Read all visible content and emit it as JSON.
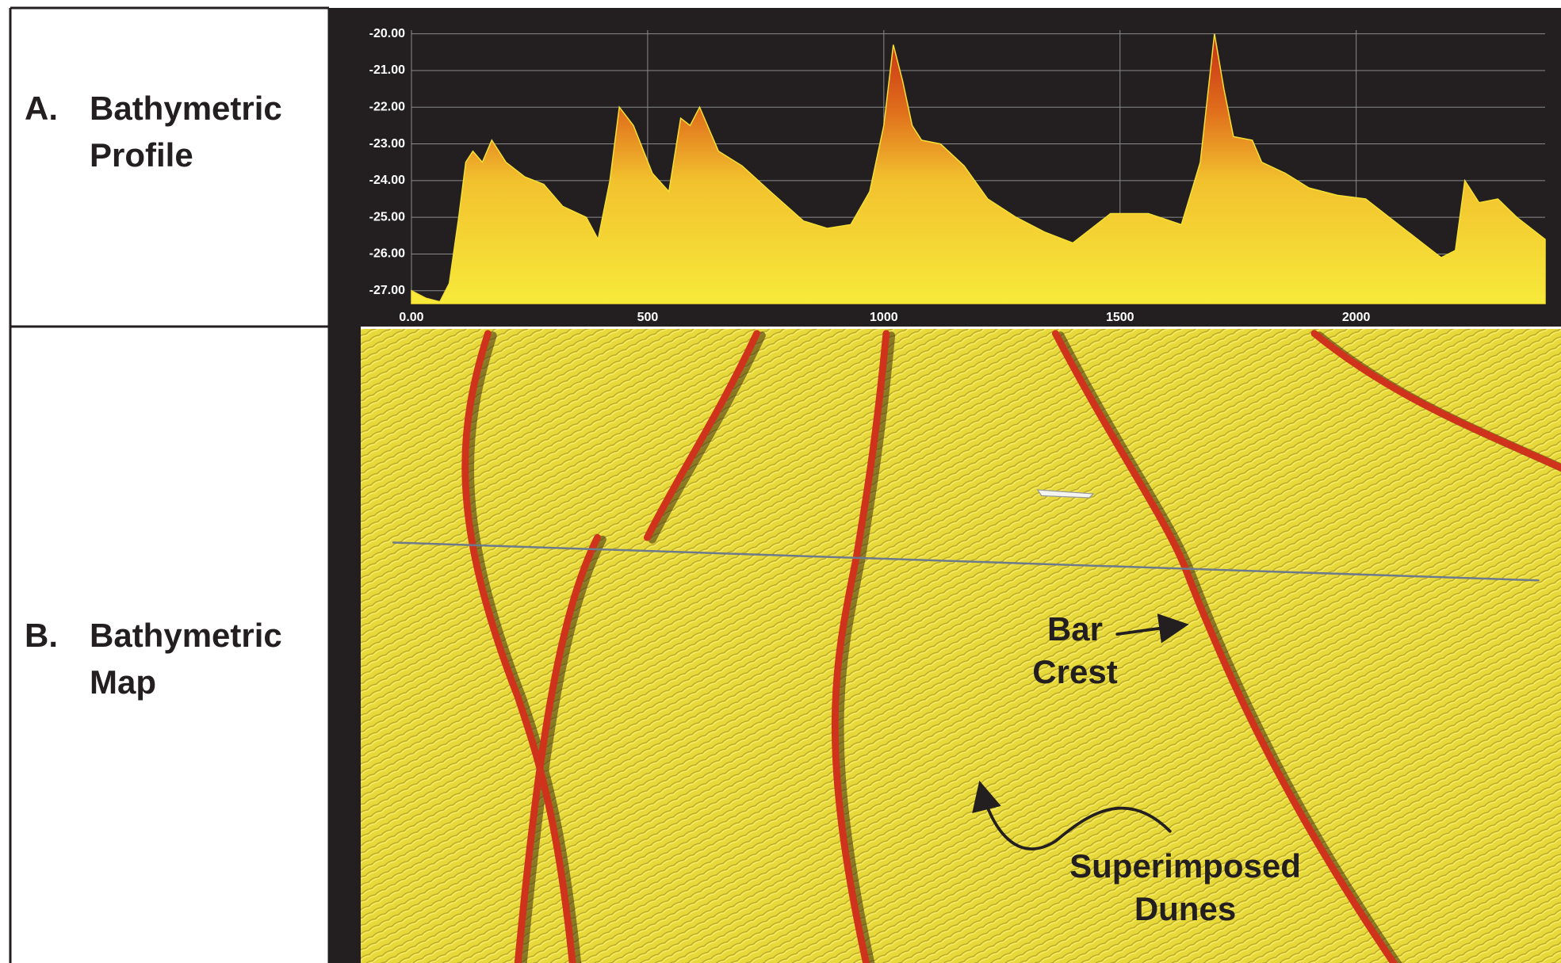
{
  "panels": [
    {
      "letter": "A.",
      "lines": [
        "Bathymetric",
        "Profile"
      ]
    },
    {
      "letter": "B.",
      "lines": [
        "Bathymetric",
        "Map"
      ]
    }
  ],
  "map": {
    "annotations": [
      {
        "lines": [
          "Bar",
          "Crest"
        ]
      },
      {
        "lines": [
          "Superimposed",
          "Dunes"
        ]
      }
    ]
  },
  "chart_data": {
    "type": "area",
    "color": "#f5e033",
    "grid": true,
    "x": [
      0,
      30,
      60,
      80,
      100,
      115,
      130,
      150,
      170,
      200,
      240,
      280,
      320,
      370,
      395,
      420,
      440,
      470,
      510,
      545,
      570,
      590,
      610,
      650,
      700,
      760,
      830,
      880,
      930,
      970,
      1000,
      1020,
      1040,
      1060,
      1080,
      1120,
      1170,
      1220,
      1280,
      1340,
      1400,
      1440,
      1480,
      1560,
      1630,
      1670,
      1700,
      1720,
      1740,
      1780,
      1800,
      1850,
      1900,
      1960,
      2020,
      2080,
      2130,
      2180,
      2210,
      2230,
      2260,
      2300,
      2340,
      2400
    ],
    "values": [
      -27.0,
      -27.2,
      -27.3,
      -26.8,
      -25.0,
      -23.5,
      -23.2,
      -23.5,
      -22.9,
      -23.5,
      -23.9,
      -24.1,
      -24.7,
      -25.0,
      -25.6,
      -24.0,
      -22.0,
      -22.5,
      -23.8,
      -24.3,
      -22.3,
      -22.5,
      -22.0,
      -23.2,
      -23.6,
      -24.3,
      -25.1,
      -25.3,
      -25.2,
      -24.3,
      -22.5,
      -20.3,
      -21.3,
      -22.5,
      -22.9,
      -23.0,
      -23.6,
      -24.5,
      -25.0,
      -25.4,
      -25.7,
      -25.3,
      -24.9,
      -24.9,
      -25.2,
      -23.5,
      -20.0,
      -21.5,
      -22.8,
      -22.9,
      -23.5,
      -23.8,
      -24.2,
      -24.4,
      -24.5,
      -25.1,
      -25.6,
      -26.1,
      -25.9,
      -24.0,
      -24.6,
      -24.5,
      -25.0,
      -25.6
    ],
    "xlim": [
      0,
      2400
    ],
    "ylim": [
      -27.35,
      -19.9
    ],
    "xticks": [
      {
        "value": 0,
        "label": "0.00"
      },
      500,
      1000,
      1500,
      2000
    ],
    "yticks": [
      {
        "value": -20,
        "label": "-20.00"
      },
      {
        "value": -21,
        "label": "-21.00"
      },
      {
        "value": -22,
        "label": "-22.00"
      },
      {
        "value": -23,
        "label": "-23.00"
      },
      {
        "value": -24,
        "label": "-24.00"
      },
      {
        "value": -25,
        "label": "-25.00"
      },
      {
        "value": -26,
        "label": "-26.00"
      },
      {
        "value": -27,
        "label": "-27.00"
      }
    ]
  }
}
